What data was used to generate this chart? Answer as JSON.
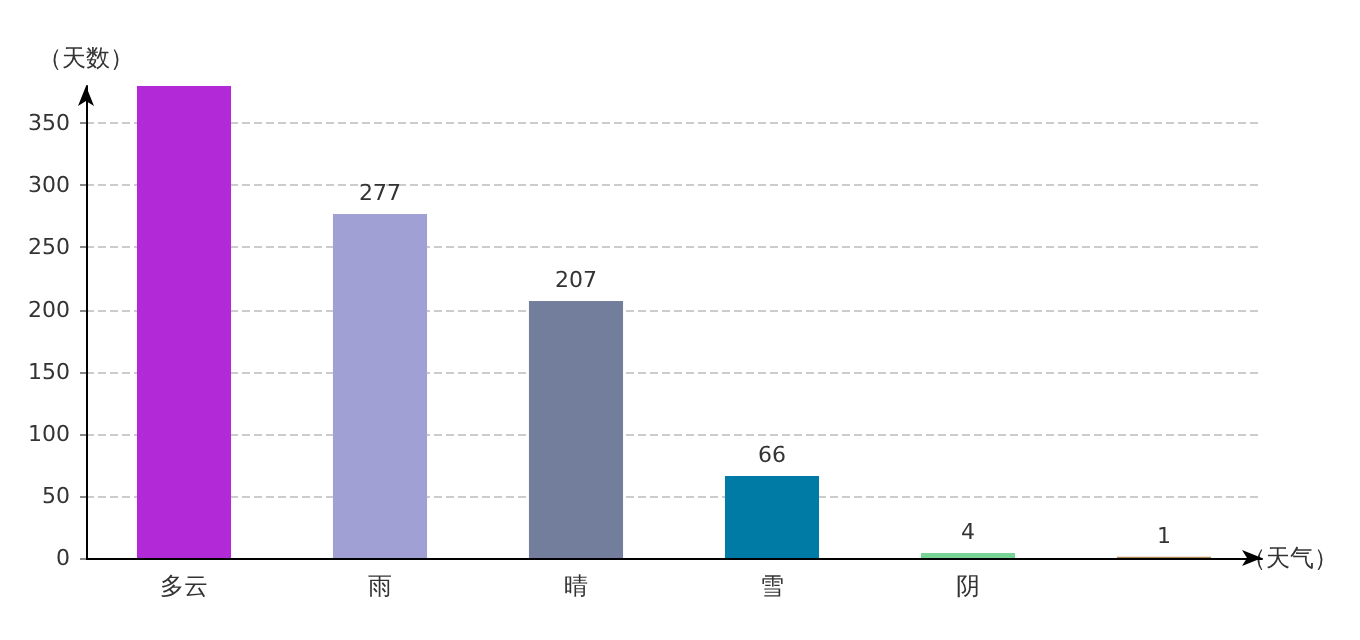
{
  "chart_data": {
    "type": "bar",
    "xlabel": "（天气）",
    "ylabel": "（天数）",
    "categories": [
      "多云",
      "雨",
      "晴",
      "雪",
      "阴",
      null
    ],
    "values": [
      380,
      277,
      207,
      66,
      4,
      1
    ],
    "colors": [
      "#b22ad8",
      "#a0a0d4",
      "#737d9c",
      "#007ba5",
      "#77d494",
      "#b08a5a"
    ],
    "value_labels": [
      null,
      "277",
      "207",
      "66",
      "4",
      "1"
    ],
    "ylim": [
      0,
      380
    ],
    "yticks": [
      0,
      50,
      100,
      150,
      200,
      250,
      300,
      350
    ],
    "grid": "y"
  }
}
